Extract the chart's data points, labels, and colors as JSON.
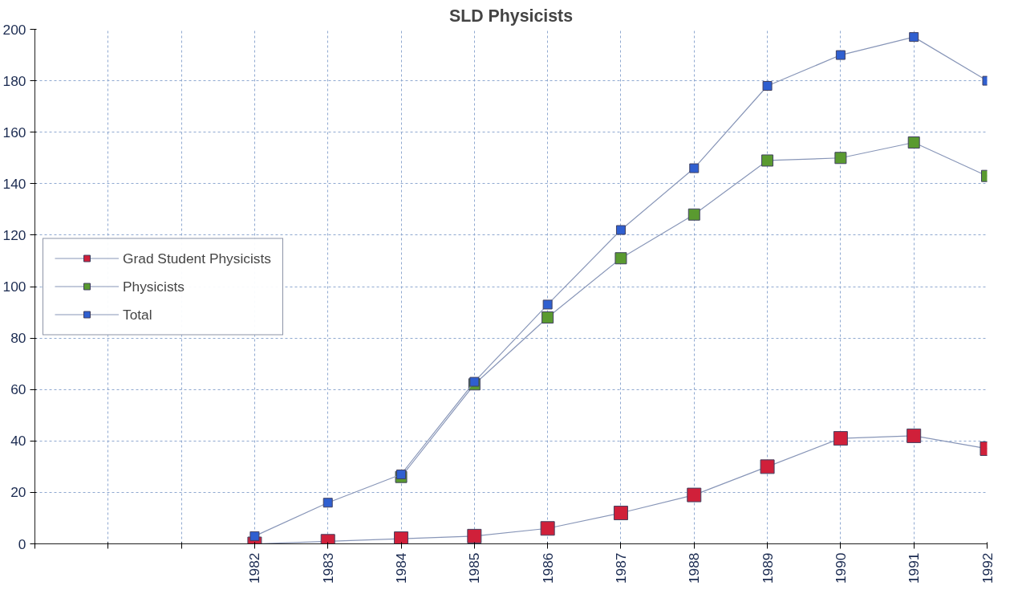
{
  "chart_data": {
    "type": "line",
    "title": "SLD Physicists",
    "x": [
      1982,
      1983,
      1984,
      1985,
      1986,
      1987,
      1988,
      1989,
      1990,
      1991,
      1992
    ],
    "xlim": [
      1979,
      1992
    ],
    "xticks": [
      {
        "value": 1979,
        "label": null
      },
      {
        "value": 1980,
        "label": null
      },
      {
        "value": 1981,
        "label": null
      },
      1982,
      1983,
      1984,
      1985,
      1986,
      1987,
      1988,
      1989,
      1990,
      1991,
      1992
    ],
    "ylim": [
      0,
      200
    ],
    "yticks": [
      0,
      20,
      40,
      60,
      80,
      100,
      120,
      140,
      160,
      180,
      200
    ],
    "grid": true,
    "legend": "left",
    "marker": "square",
    "line_style": "solid",
    "series": [
      {
        "name": "Grad Student Physicists",
        "color": "#d0203a",
        "values": [
          0,
          1,
          2,
          3,
          6,
          12,
          19,
          30,
          41,
          42,
          37
        ]
      },
      {
        "name": "Physicists",
        "color": "#5a9a30",
        "values": [
          null,
          null,
          26,
          62,
          88,
          111,
          128,
          149,
          150,
          156,
          143
        ]
      },
      {
        "name": "Total",
        "color": "#2f5fd0",
        "values": [
          3,
          16,
          27,
          63,
          93,
          122,
          146,
          178,
          190,
          197,
          180
        ]
      }
    ]
  }
}
